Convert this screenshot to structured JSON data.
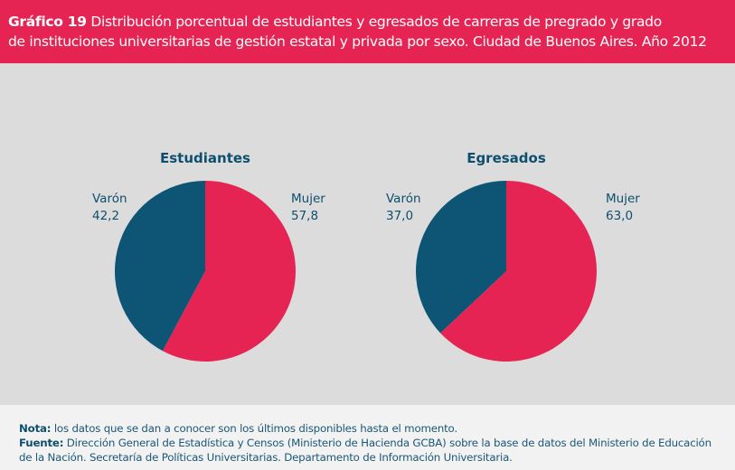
{
  "header": {
    "label": "Gráfico 19",
    "title_line1": "Distribución porcentual de estudiantes y egresados de carreras de pregrado y grado",
    "title_line2": "de instituciones universitarias de gestión estatal y privada por sexo. Ciudad de Buenos Aires. Año 2012"
  },
  "chart_data": [
    {
      "type": "pie",
      "title": "Estudiantes",
      "slices": [
        {
          "label": "Mujer",
          "value": 57.8,
          "value_label": "57,8",
          "color": "#e62454"
        },
        {
          "label": "Varón",
          "value": 42.2,
          "value_label": "42,2",
          "color": "#0e5474"
        }
      ]
    },
    {
      "type": "pie",
      "title": "Egresados",
      "slices": [
        {
          "label": "Mujer",
          "value": 63.0,
          "value_label": "63,0",
          "color": "#e62454"
        },
        {
          "label": "Varón",
          "value": 37.0,
          "value_label": "37,0",
          "color": "#0e5474"
        }
      ]
    }
  ],
  "footer": {
    "nota_label": "Nota:",
    "nota": "los datos que se dan a conocer son los últimos disponibles hasta el momento.",
    "fuente_label": "Fuente:",
    "fuente_line1": "Dirección General de Estadística y Censos (Ministerio de Hacienda GCBA) sobre la base de datos del Ministerio de Educación",
    "fuente_line2": "de la Nación. Secretaría de Políticas Universitarias. Departamento de Información Universitaria."
  }
}
